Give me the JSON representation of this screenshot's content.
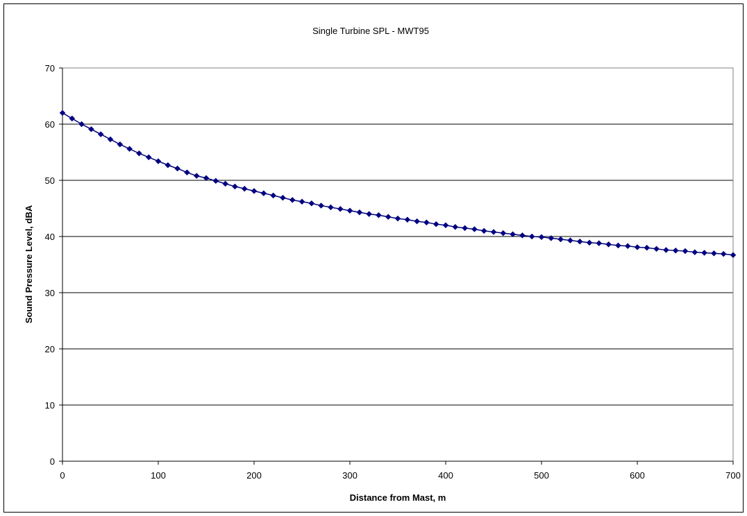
{
  "chart_data": {
    "type": "line",
    "title": "Single Turbine SPL - MWT95",
    "xlabel": "Distance from Mast, m",
    "ylabel": "Sound Pressure Level, dBA",
    "xlim": [
      0,
      700
    ],
    "ylim": [
      0,
      70
    ],
    "xticks": [
      "0",
      "100",
      "200",
      "300",
      "400",
      "500",
      "600",
      "700"
    ],
    "yticks": [
      "0",
      "10",
      "20",
      "30",
      "40",
      "50",
      "60",
      "70"
    ],
    "grid": "horizontal",
    "legend": "none",
    "marker": "diamond",
    "series_color": "#000080",
    "series": [
      {
        "x": [
          0,
          10,
          20,
          30,
          40,
          50,
          60,
          70,
          80,
          90,
          100,
          110,
          120,
          130,
          140,
          150,
          160,
          170,
          180,
          190,
          200,
          210,
          220,
          230,
          240,
          250,
          260,
          270,
          280,
          290,
          300,
          310,
          320,
          330,
          340,
          350,
          360,
          370,
          380,
          390,
          400,
          410,
          420,
          430,
          440,
          450,
          460,
          470,
          480,
          490,
          500,
          510,
          520,
          530,
          540,
          550,
          560,
          570,
          580,
          590,
          600,
          610,
          620,
          630,
          640,
          650,
          660,
          670,
          680,
          690,
          700
        ],
        "values": [
          62.0,
          61.0,
          60.0,
          59.1,
          58.2,
          57.3,
          56.4,
          55.6,
          54.8,
          54.1,
          53.4,
          52.7,
          52.1,
          51.4,
          50.8,
          50.4,
          49.9,
          49.4,
          48.9,
          48.5,
          48.1,
          47.7,
          47.3,
          46.9,
          46.5,
          46.2,
          45.9,
          45.5,
          45.2,
          44.9,
          44.6,
          44.3,
          44.0,
          43.8,
          43.5,
          43.2,
          43.0,
          42.7,
          42.5,
          42.2,
          42.0,
          41.7,
          41.5,
          41.3,
          41.0,
          40.8,
          40.6,
          40.4,
          40.2,
          40.0,
          39.9,
          39.7,
          39.5,
          39.3,
          39.1,
          38.9,
          38.8,
          38.6,
          38.4,
          38.3,
          38.1,
          38.0,
          37.8,
          37.6,
          37.5,
          37.4,
          37.2,
          37.1,
          37.0,
          36.9,
          36.7
        ]
      }
    ]
  }
}
